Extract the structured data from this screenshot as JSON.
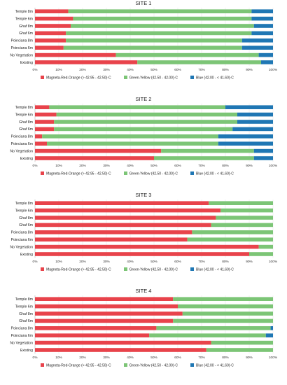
{
  "chart_data": [
    {
      "type": "bar",
      "orientation": "horizontal",
      "stacked": "percent",
      "title": "SITE 1",
      "categories": [
        "Temple 8m",
        "Temple 6m",
        "Ghaf 8m",
        "Ghaf 6m",
        "Poinciana 8m",
        "Poinciana 6m",
        "No Vegetation",
        "Existing"
      ],
      "series": [
        {
          "name": "Magneta-Red-Orange (> 42.95 - 42.50)◦C",
          "color": "#e8434b",
          "values": [
            14,
            16,
            15,
            13,
            13,
            12,
            34,
            43
          ]
        },
        {
          "name": "Green-Yellow (42.50 - 42.00)◦C",
          "color": "#7cc576",
          "values": [
            77,
            75,
            77,
            78,
            74,
            75,
            60,
            52
          ]
        },
        {
          "name": "Blue (42.00 - < 41.60)◦C",
          "color": "#1f77b4",
          "values": [
            9,
            9,
            8,
            9,
            13,
            13,
            6,
            5
          ]
        }
      ],
      "xlim": [
        0,
        100
      ],
      "x_ticks": [
        "0%",
        "10%",
        "20%",
        "30%",
        "40%",
        "50%",
        "60%",
        "70%",
        "80%",
        "90%",
        "100%"
      ],
      "legend": "bottom"
    },
    {
      "type": "bar",
      "orientation": "horizontal",
      "stacked": "percent",
      "title": "SITE 2",
      "categories": [
        "Temple 8m",
        "Temple 6m",
        "Ghaf 8m",
        "Ghaf 6m",
        "Poinciana 8m",
        "Poinciana 6m",
        "No Vegetation",
        "Existing"
      ],
      "series": [
        {
          "name": "Magneta-Red-Orange (> 42.95 - 42.50)◦C",
          "color": "#e8434b",
          "values": [
            6,
            9,
            8,
            8,
            3,
            5,
            53,
            50
          ]
        },
        {
          "name": "Green-Yellow (42.50 - 42.00)◦C",
          "color": "#7cc576",
          "values": [
            74,
            76,
            77,
            75,
            74,
            72,
            39,
            42
          ]
        },
        {
          "name": "Blue (42.00 - < 41.60)◦C",
          "color": "#1f77b4",
          "values": [
            20,
            15,
            15,
            17,
            23,
            23,
            8,
            8
          ]
        }
      ],
      "xlim": [
        0,
        100
      ],
      "x_ticks": [
        "0%",
        "10%",
        "20%",
        "30%",
        "40%",
        "50%",
        "60%",
        "70%",
        "80%",
        "90%",
        "100%"
      ],
      "legend": "bottom"
    },
    {
      "type": "bar",
      "orientation": "horizontal",
      "stacked": "percent",
      "title": "SITE 3",
      "categories": [
        "Temple 8m",
        "Temple 6m",
        "Ghaf 8m",
        "Ghaf 6m",
        "Poinciana 8m",
        "Poinciana 6m",
        "No Vegetation",
        "Existing"
      ],
      "series": [
        {
          "name": "Magneta-Red-Orange (> 42.95 - 42.50)◦C",
          "color": "#e8434b",
          "values": [
            73,
            78,
            76,
            74,
            66,
            64,
            94,
            90
          ]
        },
        {
          "name": "Green-Yellow (42.50 - 42.00)◦C",
          "color": "#7cc576",
          "values": [
            27,
            22,
            24,
            26,
            34,
            36,
            6,
            10
          ]
        },
        {
          "name": "Blue (42.00 - < 41.60)◦C",
          "color": "#1f77b4",
          "values": [
            0,
            0,
            0,
            0,
            0,
            0,
            0,
            0
          ]
        }
      ],
      "xlim": [
        0,
        100
      ],
      "x_ticks": [
        "0%",
        "10%",
        "20%",
        "30%",
        "40%",
        "50%",
        "60%",
        "70%",
        "80%",
        "90%",
        "100%"
      ],
      "legend": "bottom"
    },
    {
      "type": "bar",
      "orientation": "horizontal",
      "stacked": "percent",
      "title": "SITE 4",
      "categories": [
        "Temple 8m",
        "Temple 6m",
        "Ghaf 8m",
        "Ghaf 6m",
        "Poinciana 8m",
        "Poinciana 6m",
        "No Vegetation",
        "Existing"
      ],
      "series": [
        {
          "name": "Magneta-Red-Orange (> 42.95 - 42.50)◦C",
          "color": "#e8434b",
          "values": [
            58,
            60,
            62,
            58,
            51,
            48,
            74,
            72
          ]
        },
        {
          "name": "Green-Yellow (42.50 - 42.00)◦C",
          "color": "#7cc576",
          "values": [
            42,
            40,
            38,
            42,
            48,
            49,
            26,
            28
          ]
        },
        {
          "name": "Blue (42.00 - < 41.60)◦C",
          "color": "#1f77b4",
          "values": [
            0,
            0,
            0,
            0,
            1,
            3,
            0,
            0
          ]
        }
      ],
      "xlim": [
        0,
        100
      ],
      "x_ticks": [
        "0%",
        "10%",
        "20%",
        "30%",
        "40%",
        "50%",
        "60%",
        "70%",
        "80%",
        "90%",
        "100%"
      ],
      "legend": "bottom"
    }
  ]
}
